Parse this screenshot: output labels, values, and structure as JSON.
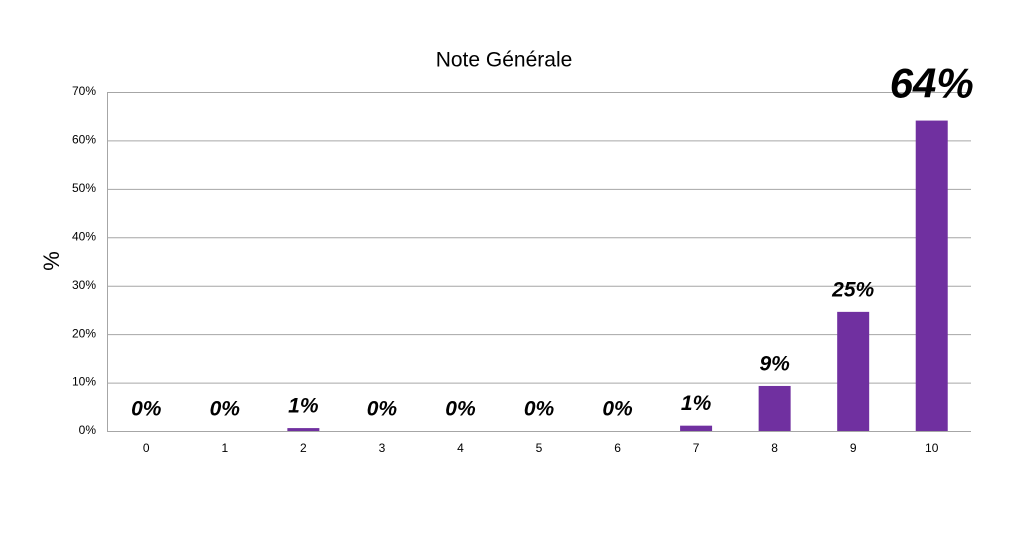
{
  "chart_data": {
    "type": "bar",
    "title": "Note Générale",
    "y_label": "%",
    "categories": [
      "0",
      "1",
      "2",
      "3",
      "4",
      "5",
      "6",
      "7",
      "8",
      "9",
      "10"
    ],
    "values": [
      0,
      0,
      0.6,
      0,
      0,
      0,
      0,
      1.1,
      9.3,
      24.6,
      64.1
    ],
    "value_labels": [
      "0%",
      "0%",
      "1%",
      "0%",
      "0%",
      "0%",
      "0%",
      "1%",
      "9%",
      "25%",
      "64%"
    ],
    "color": "#7030a0",
    "ylim": [
      0,
      70
    ],
    "yticks": [
      {
        "value": 0,
        "label": "0%"
      },
      {
        "value": 10,
        "label": "10%"
      },
      {
        "value": 20,
        "label": "20%"
      },
      {
        "value": 30,
        "label": "30%"
      },
      {
        "value": 40,
        "label": "40%"
      },
      {
        "value": 50,
        "label": "50%"
      },
      {
        "value": 60,
        "label": "60%"
      },
      {
        "value": 70,
        "label": "70%"
      }
    ],
    "grid": true
  }
}
